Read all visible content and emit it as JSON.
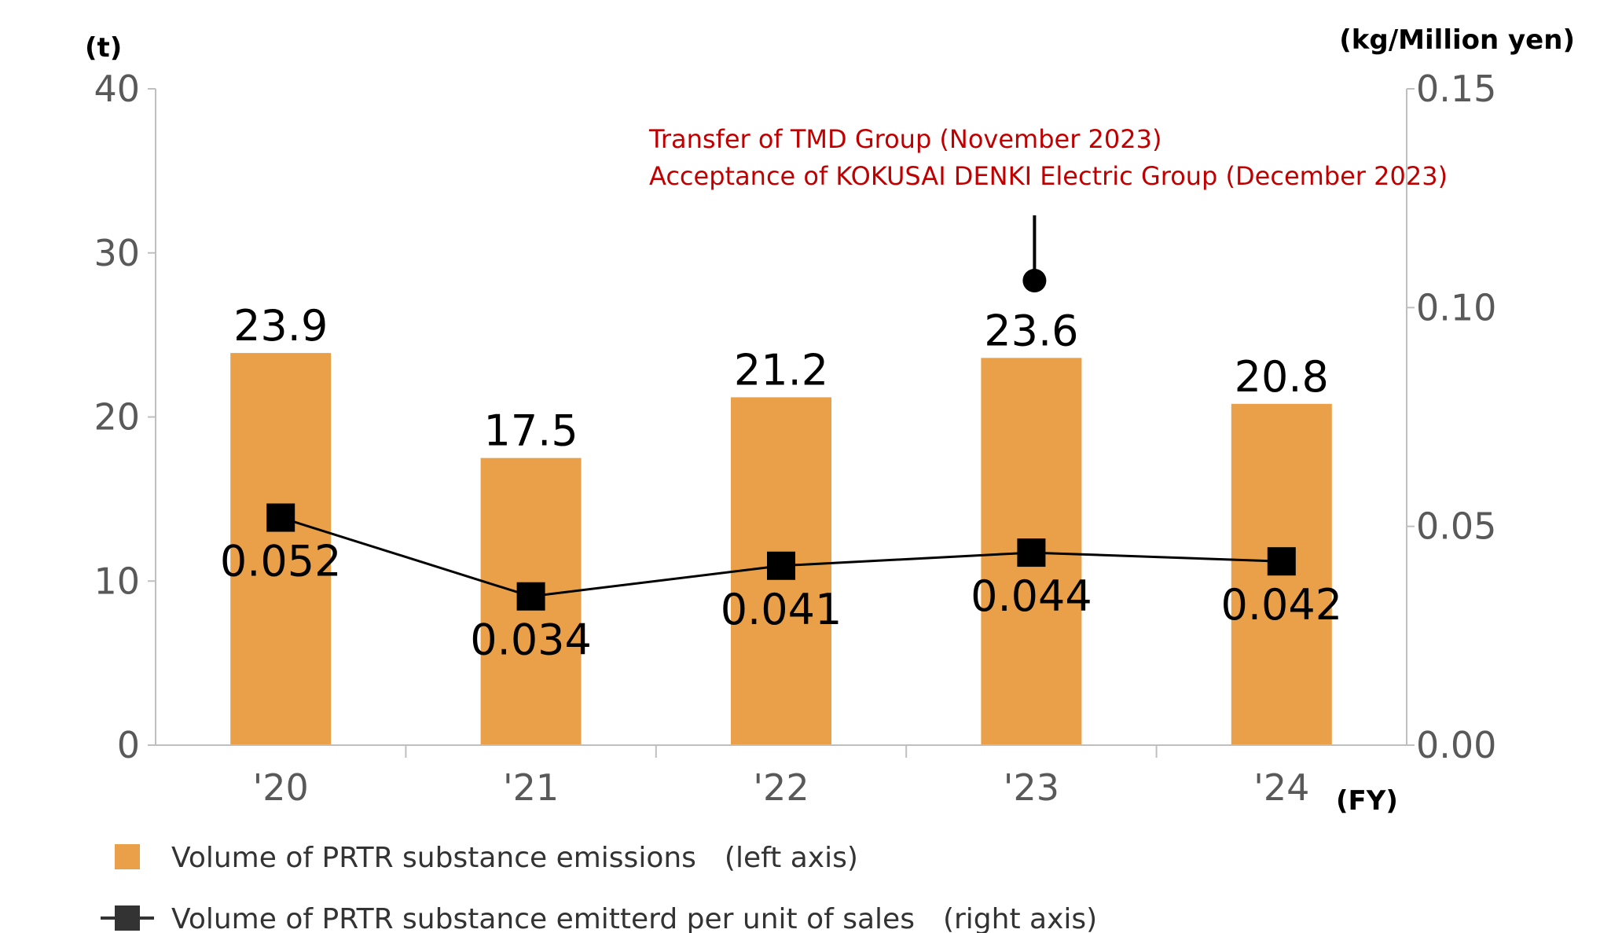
{
  "chart_data": {
    "type": "bar",
    "categories": [
      "'20",
      "'21",
      "'22",
      "'23",
      "'24"
    ],
    "x_unit": "(FY)",
    "y_left": {
      "unit": "(t)",
      "ylim": [
        0,
        40
      ],
      "ticks": [
        "0",
        "10",
        "20",
        "30",
        "40"
      ]
    },
    "y_right": {
      "unit": "(kg/Million yen)",
      "ylim": [
        0,
        0.15
      ],
      "ticks": [
        "0.00",
        "0.05",
        "0.10",
        "0.15"
      ]
    },
    "series": [
      {
        "name": "Volume of PRTR substance emissions　(left axis)",
        "type": "bar",
        "axis": "left",
        "color": "#e9a048",
        "values": [
          23.9,
          17.5,
          21.2,
          23.6,
          20.8
        ],
        "labels": [
          "23.9",
          "17.5",
          "21.2",
          "23.6",
          "20.8"
        ]
      },
      {
        "name": "Volume of PRTR substance emitterd per unit of sales　(right axis)",
        "type": "line",
        "axis": "right",
        "color": "#000000",
        "marker": "square",
        "values": [
          0.052,
          0.034,
          0.041,
          0.044,
          0.042
        ],
        "labels": [
          "0.052",
          "0.034",
          "0.041",
          "0.044",
          "0.042"
        ]
      }
    ],
    "annotation": {
      "category_index": 3,
      "lines": [
        "Transfer of TMD Group (November 2023)",
        "Acceptance of KOKUSAI DENKI Electric Group (December 2023)"
      ],
      "color": "#c00000"
    },
    "grid": false,
    "legend_position": "bottom-left"
  }
}
